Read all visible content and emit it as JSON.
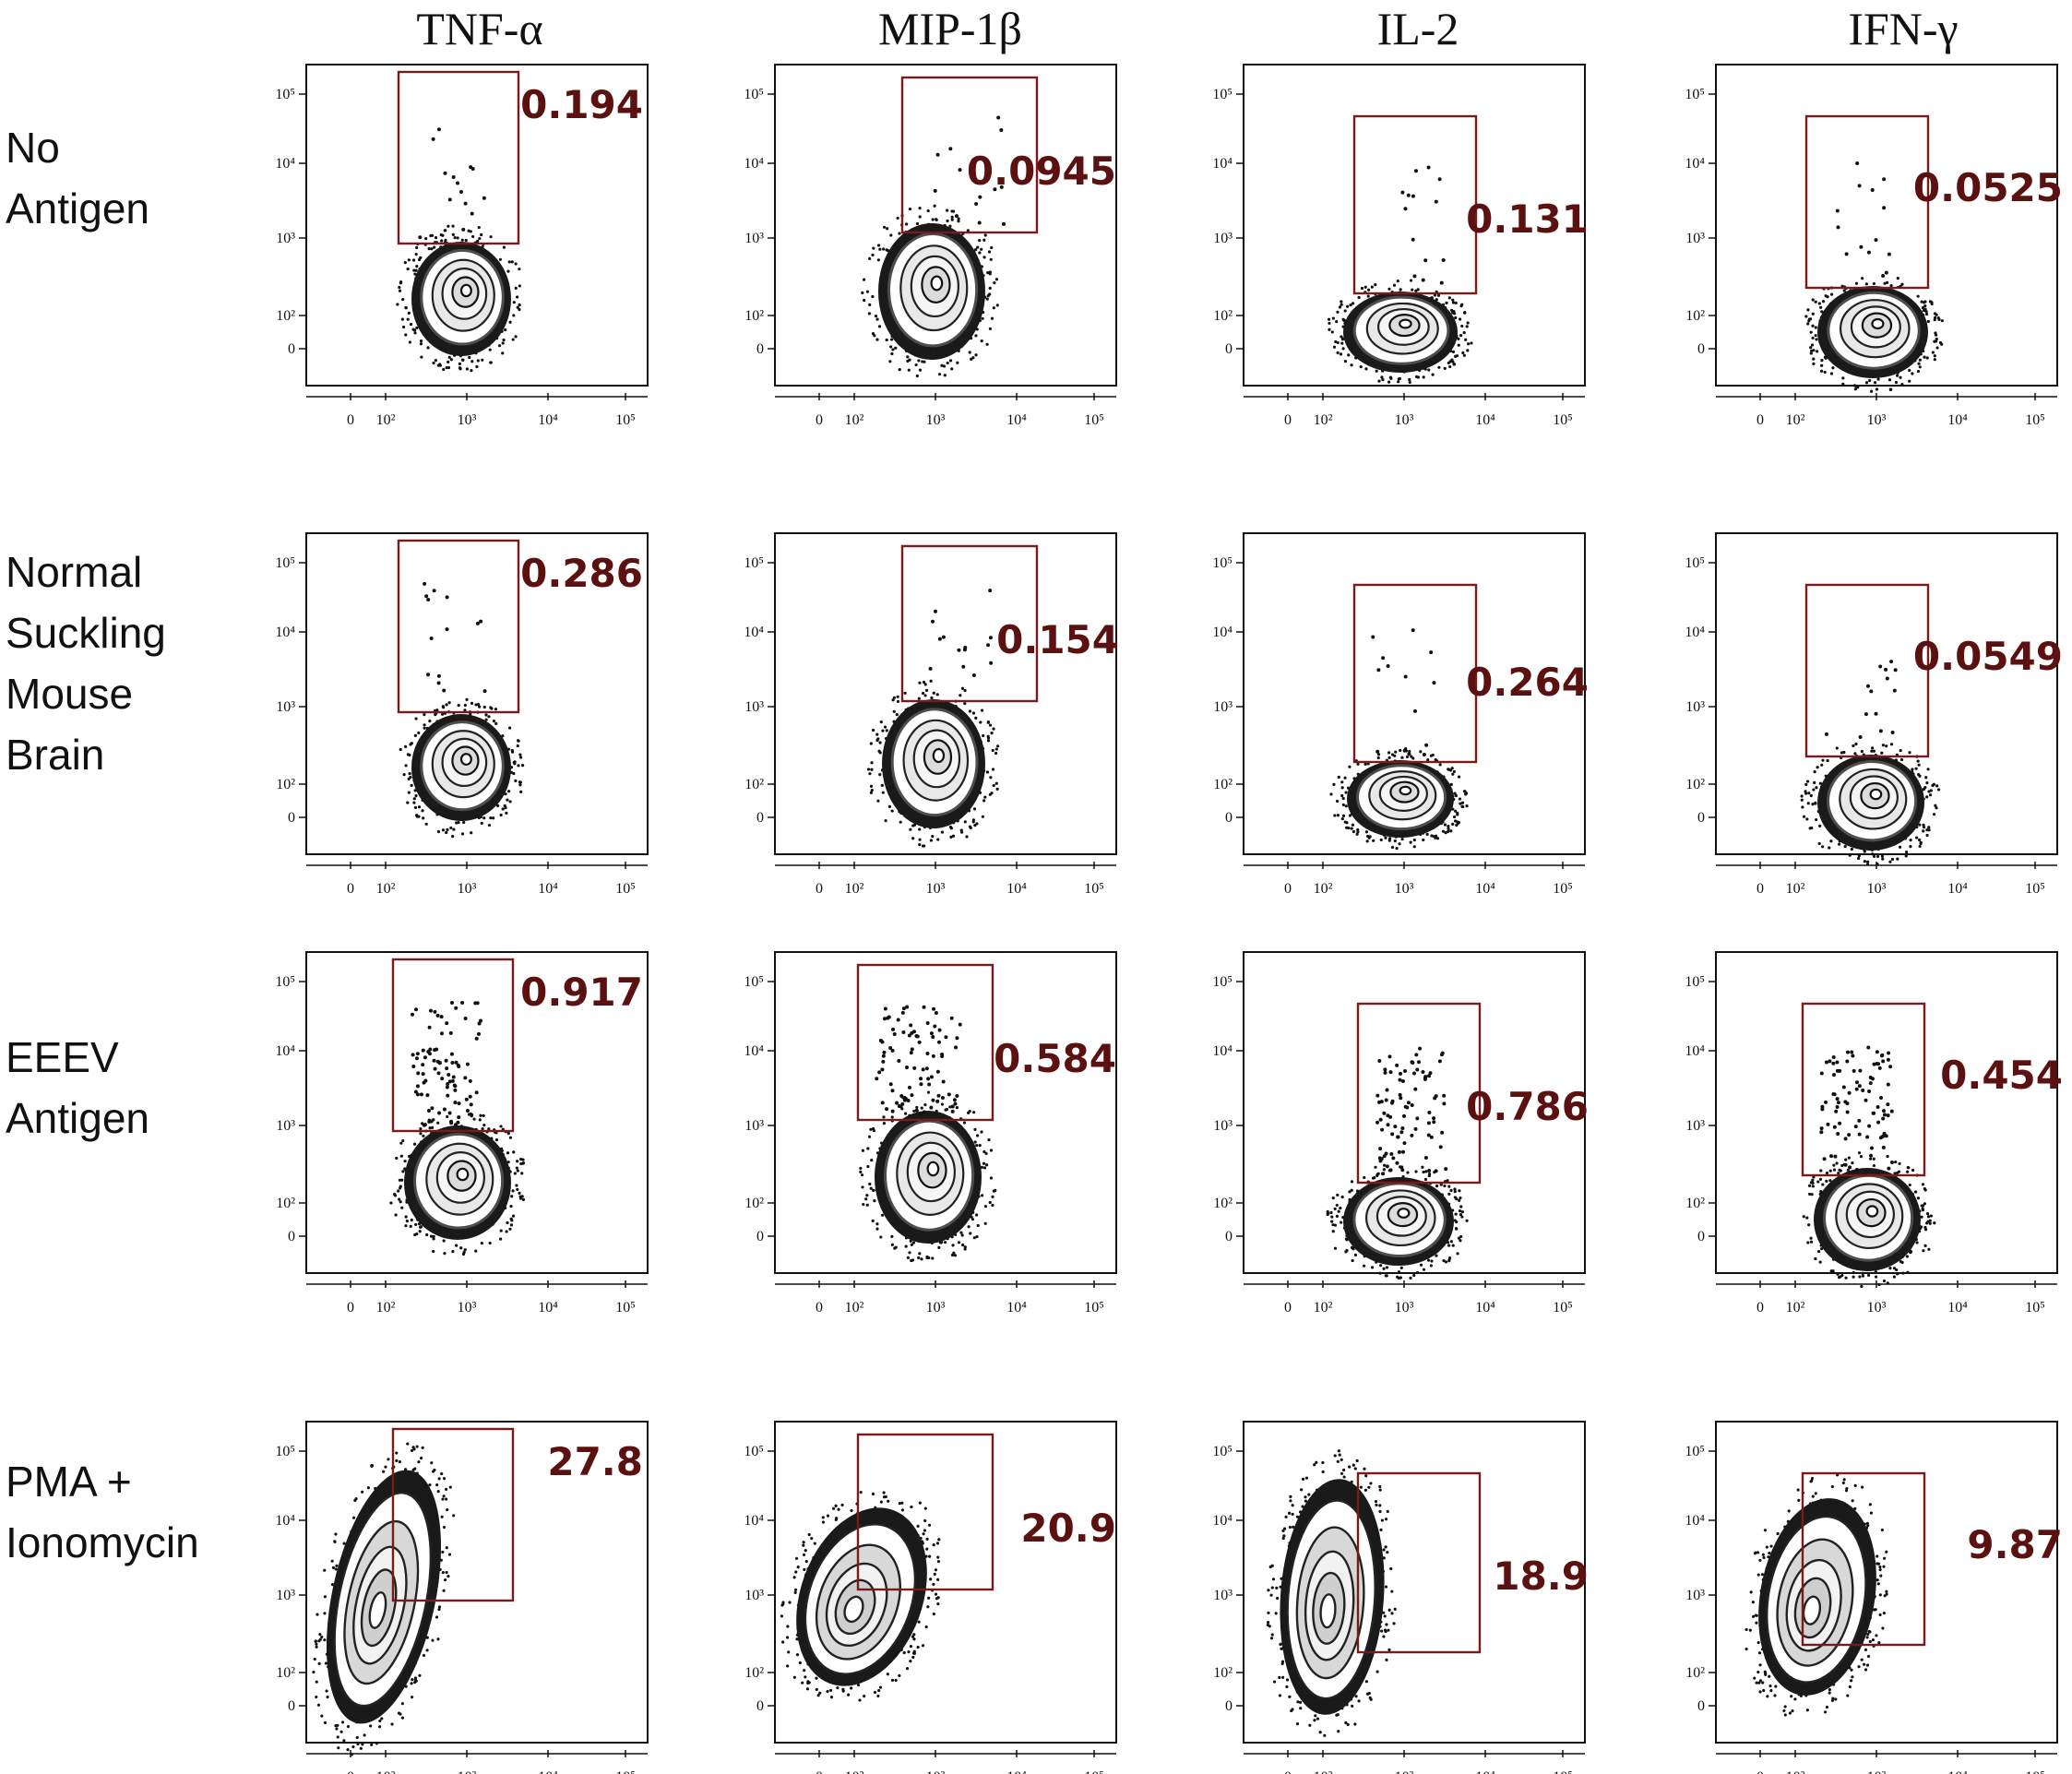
{
  "chart_data": {
    "type": "scatter",
    "chart_kind": "flow-cytometry-contour-grid",
    "columns": [
      "TNF-α",
      "MIP-1β",
      "IL-2",
      "IFN-γ"
    ],
    "rows": [
      [
        "No",
        "Antigen"
      ],
      [
        "Normal",
        "Suckling",
        "Mouse",
        "Brain"
      ],
      [
        "EEEV",
        "Antigen"
      ],
      [
        "PMA +",
        "Ionomycin"
      ]
    ],
    "y_tick_labels": [
      "10⁵",
      "10⁴",
      "10³",
      "10²",
      "0"
    ],
    "x_tick_labels": [
      "0",
      "10²",
      "10³",
      "10⁴",
      "10⁵"
    ],
    "axis_range_log10": [
      0,
      5
    ],
    "gate_values": [
      [
        "0.194",
        "0.0945",
        "0.131",
        "0.0525"
      ],
      [
        "0.286",
        "0.154",
        "0.264",
        "0.0549"
      ],
      [
        "0.917",
        "0.584",
        "0.786",
        "0.454"
      ],
      [
        "27.8",
        "20.9",
        "18.9",
        "9.87"
      ]
    ],
    "gate_color": "#7a1a1a",
    "value_color": "#5c1111"
  }
}
